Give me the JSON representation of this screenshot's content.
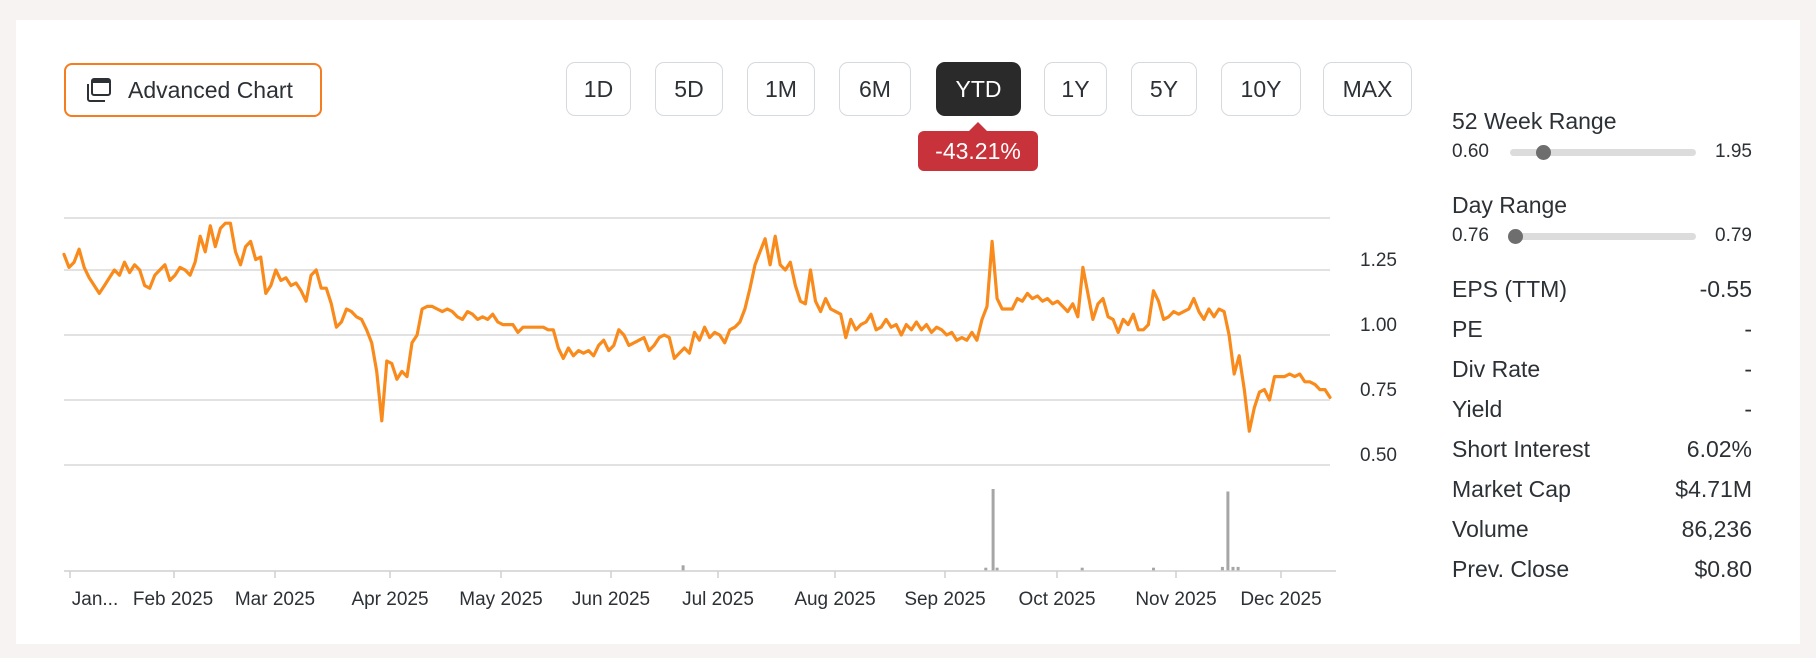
{
  "toolbar": {
    "advanced_chart_label": "Advanced Chart",
    "advanced_chart_icon": "chart-window-icon",
    "ranges": [
      "1D",
      "5D",
      "1M",
      "6M",
      "YTD",
      "1Y",
      "5Y",
      "10Y",
      "MAX"
    ],
    "active_range": "YTD",
    "performance": "-43.21%"
  },
  "colors": {
    "accent": "#f57c1f",
    "line": "#f98a1c",
    "negative_badge": "#c8323a",
    "active_button": "#2a2a2a",
    "volume_bar": "#a6a6a6",
    "gridline": "#d8d8d8"
  },
  "chart_data": {
    "type": "line",
    "title": "",
    "xlabel": "",
    "ylabel": "",
    "ylim": [
      0.5,
      1.45
    ],
    "y_ticks": [
      "1.25",
      "1.00",
      "0.75",
      "0.50"
    ],
    "x_ticks": [
      "Jan...",
      "Feb 2025",
      "Mar 2025",
      "Apr 2025",
      "May 2025",
      "Jun 2025",
      "Jul 2025",
      "Aug 2025",
      "Sep 2025",
      "Oct 2025",
      "Nov 2025",
      "Dec 2025"
    ],
    "grid": true,
    "legend": "none",
    "series": [
      {
        "values": [
          1.31,
          1.26,
          1.28,
          1.33,
          1.26,
          1.22,
          1.19,
          1.16,
          1.19,
          1.22,
          1.25,
          1.23,
          1.28,
          1.24,
          1.27,
          1.25,
          1.19,
          1.18,
          1.23,
          1.25,
          1.27,
          1.21,
          1.23,
          1.26,
          1.25,
          1.23,
          1.28,
          1.38,
          1.32,
          1.42,
          1.34,
          1.41,
          1.43,
          1.43,
          1.32,
          1.27,
          1.34,
          1.36,
          1.29,
          1.3,
          1.16,
          1.19,
          1.25,
          1.21,
          1.22,
          1.19,
          1.2,
          1.17,
          1.13,
          1.23,
          1.25,
          1.18,
          1.18,
          1.12,
          1.03,
          1.05,
          1.1,
          1.09,
          1.07,
          1.06,
          1.02,
          0.97,
          0.86,
          0.67,
          0.9,
          0.89,
          0.83,
          0.86,
          0.84,
          0.97,
          1.0,
          1.1,
          1.11,
          1.11,
          1.1,
          1.09,
          1.1,
          1.09,
          1.07,
          1.06,
          1.09,
          1.08,
          1.06,
          1.07,
          1.06,
          1.08,
          1.05,
          1.04,
          1.04,
          1.04,
          1.01,
          1.03,
          1.03,
          1.03,
          1.03,
          1.03,
          1.02,
          1.02,
          0.95,
          0.91,
          0.95,
          0.92,
          0.94,
          0.93,
          0.94,
          0.92,
          0.96,
          0.98,
          0.94,
          0.96,
          1.02,
          1.0,
          0.96,
          0.97,
          0.98,
          0.99,
          0.94,
          0.96,
          0.99,
          1.0,
          0.99,
          0.91,
          0.93,
          0.95,
          0.93,
          1.01,
          0.98,
          1.03,
          0.99,
          1.01,
          1.0,
          0.97,
          1.02,
          1.03,
          1.05,
          1.1,
          1.18,
          1.27,
          1.32,
          1.37,
          1.27,
          1.38,
          1.27,
          1.25,
          1.28,
          1.19,
          1.13,
          1.12,
          1.25,
          1.13,
          1.09,
          1.14,
          1.1,
          1.09,
          1.08,
          0.99,
          1.06,
          1.02,
          1.04,
          1.05,
          1.08,
          1.02,
          1.03,
          1.06,
          1.03,
          1.04,
          1.0,
          1.04,
          1.02,
          1.05,
          1.02,
          1.04,
          1.01,
          1.03,
          1.02,
          1.0,
          1.01,
          0.98,
          0.99,
          0.98,
          1.01,
          0.98,
          1.06,
          1.11,
          1.36,
          1.14,
          1.1,
          1.1,
          1.1,
          1.14,
          1.13,
          1.16,
          1.14,
          1.15,
          1.13,
          1.14,
          1.12,
          1.13,
          1.11,
          1.09,
          1.12,
          1.07,
          1.26,
          1.16,
          1.06,
          1.12,
          1.14,
          1.07,
          1.06,
          1.01,
          1.06,
          1.04,
          1.08,
          1.02,
          1.02,
          1.04,
          1.17,
          1.13,
          1.06,
          1.07,
          1.09,
          1.08,
          1.09,
          1.1,
          1.14,
          1.09,
          1.06,
          1.1,
          1.07,
          1.1,
          1.09,
          1.0,
          0.85,
          0.92,
          0.79,
          0.63,
          0.72,
          0.78,
          0.79,
          0.75,
          0.84,
          0.84,
          0.84,
          0.85,
          0.84,
          0.85,
          0.82,
          0.82,
          0.81,
          0.79,
          0.79,
          0.76
        ]
      }
    ],
    "volume": [
      {
        "at": 0.4867,
        "height": 0.07
      },
      {
        "at": 0.7247,
        "height": 0.04
      },
      {
        "at": 0.7304,
        "height": 1.0
      },
      {
        "at": 0.7336,
        "height": 0.04
      },
      {
        "at": 0.8005,
        "height": 0.04
      },
      {
        "at": 0.8565,
        "height": 0.04
      },
      {
        "at": 0.9107,
        "height": 0.05
      },
      {
        "at": 0.915,
        "height": 0.97
      },
      {
        "at": 0.919,
        "height": 0.05
      },
      {
        "at": 0.923,
        "height": 0.05
      }
    ]
  },
  "stats": {
    "week52": {
      "label": "52 Week Range",
      "low": "0.60",
      "high": "1.95",
      "position": 0.18
    },
    "day": {
      "label": "Day Range",
      "low": "0.76",
      "high": "0.79",
      "position": 0.03
    },
    "rows": [
      {
        "label": "EPS (TTM)",
        "value": "-0.55"
      },
      {
        "label": "PE",
        "value": "-"
      },
      {
        "label": "Div Rate",
        "value": "-"
      },
      {
        "label": "Yield",
        "value": "-"
      },
      {
        "label": "Short Interest",
        "value": "6.02%"
      },
      {
        "label": "Market Cap",
        "value": "$4.71M"
      },
      {
        "label": "Volume",
        "value": "86,236"
      },
      {
        "label": "Prev. Close",
        "value": "$0.80"
      }
    ]
  }
}
